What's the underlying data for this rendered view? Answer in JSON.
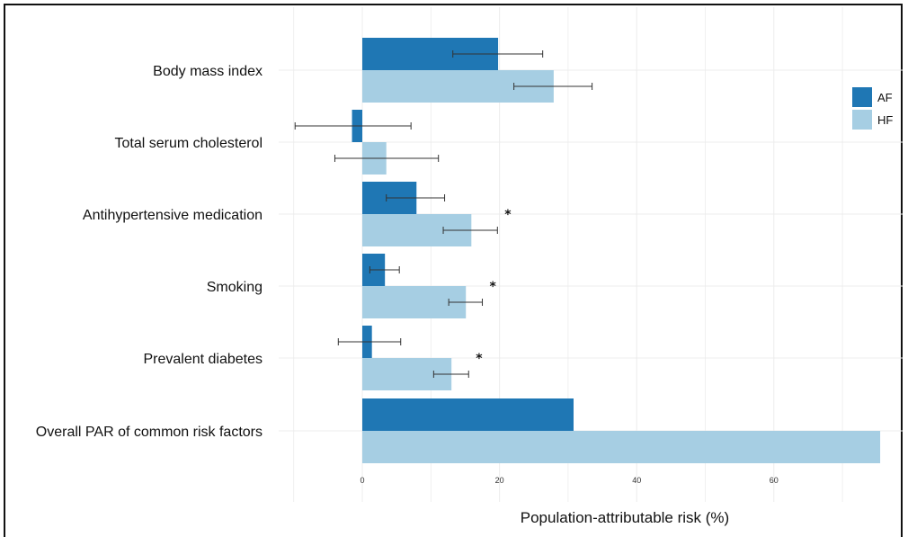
{
  "chart_data": {
    "type": "bar",
    "orientation": "horizontal",
    "categories": [
      "Body mass index",
      "Total serum cholesterol",
      "Antihypertensive medication",
      "Smoking",
      "Prevalent diabetes",
      "Overall PAR of common risk factors"
    ],
    "series": [
      {
        "name": "AF",
        "color": "#1f77b4",
        "values": [
          19.8,
          -1.5,
          7.9,
          3.3,
          1.4,
          30.8
        ],
        "error_low": [
          13.2,
          -9.8,
          3.5,
          1.1,
          -3.5,
          null
        ],
        "error_high": [
          26.3,
          7.1,
          12.0,
          5.4,
          5.6,
          null
        ]
      },
      {
        "name": "HF",
        "color": "#a6cee3",
        "values": [
          27.9,
          3.5,
          15.9,
          15.1,
          13.0,
          75.5
        ],
        "error_low": [
          22.1,
          -4.0,
          11.8,
          12.6,
          10.4,
          null
        ],
        "error_high": [
          33.5,
          11.1,
          19.7,
          17.5,
          15.5,
          null
        ]
      }
    ],
    "significance_markers": [
      {
        "category": "Antihypertensive medication",
        "label": "*"
      },
      {
        "category": "Smoking",
        "label": "*"
      },
      {
        "category": "Prevalent diabetes",
        "label": "*"
      }
    ],
    "xticks": [
      "0",
      "20",
      "40",
      "60"
    ],
    "xlim": [
      -10,
      77
    ],
    "xlabel": "Population-attributable risk (%)",
    "ylabel": "",
    "title": "",
    "grid": true,
    "legend_position": "top-right"
  }
}
